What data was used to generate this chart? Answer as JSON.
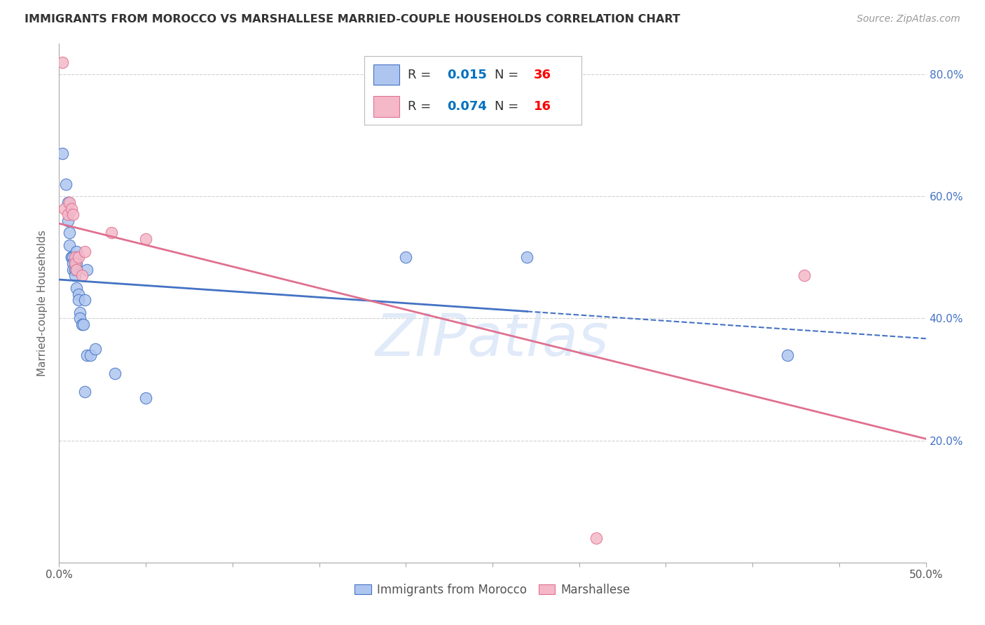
{
  "title": "IMMIGRANTS FROM MOROCCO VS MARSHALLESE MARRIED-COUPLE HOUSEHOLDS CORRELATION CHART",
  "source": "Source: ZipAtlas.com",
  "ylabel": "Married-couple Households",
  "x_min": 0.0,
  "x_max": 0.5,
  "y_min": 0.0,
  "y_max": 0.85,
  "blue_color": "#aec6ef",
  "pink_color": "#f4b8c8",
  "blue_line_color": "#4472c4",
  "pink_line_color": "#e07090",
  "background_color": "#ffffff",
  "grid_color": "#cccccc",
  "blue_scatter_x": [
    0.002,
    0.004,
    0.005,
    0.005,
    0.006,
    0.006,
    0.007,
    0.007,
    0.008,
    0.008,
    0.008,
    0.009,
    0.009,
    0.009,
    0.01,
    0.01,
    0.01,
    0.01,
    0.01,
    0.011,
    0.011,
    0.012,
    0.012,
    0.013,
    0.014,
    0.015,
    0.015,
    0.016,
    0.016,
    0.018,
    0.021,
    0.032,
    0.05,
    0.2,
    0.27,
    0.42
  ],
  "blue_scatter_y": [
    0.67,
    0.62,
    0.59,
    0.56,
    0.54,
    0.52,
    0.5,
    0.5,
    0.5,
    0.49,
    0.48,
    0.49,
    0.48,
    0.47,
    0.51,
    0.5,
    0.49,
    0.48,
    0.45,
    0.44,
    0.43,
    0.41,
    0.4,
    0.39,
    0.39,
    0.43,
    0.28,
    0.34,
    0.48,
    0.34,
    0.35,
    0.31,
    0.27,
    0.5,
    0.5,
    0.34
  ],
  "pink_scatter_x": [
    0.002,
    0.003,
    0.005,
    0.006,
    0.007,
    0.008,
    0.009,
    0.009,
    0.01,
    0.011,
    0.013,
    0.015,
    0.03,
    0.05,
    0.31,
    0.43
  ],
  "pink_scatter_y": [
    0.82,
    0.58,
    0.57,
    0.59,
    0.58,
    0.57,
    0.5,
    0.49,
    0.48,
    0.5,
    0.47,
    0.51,
    0.54,
    0.53,
    0.04,
    0.47
  ],
  "blue_R": "0.015",
  "blue_N": "36",
  "pink_R": "0.074",
  "pink_N": "16",
  "legend_R_N_color": "#0070c0",
  "legend_label_blue": "Immigrants from Morocco",
  "legend_label_pink": "Marshallese",
  "watermark": "ZIPatlas"
}
